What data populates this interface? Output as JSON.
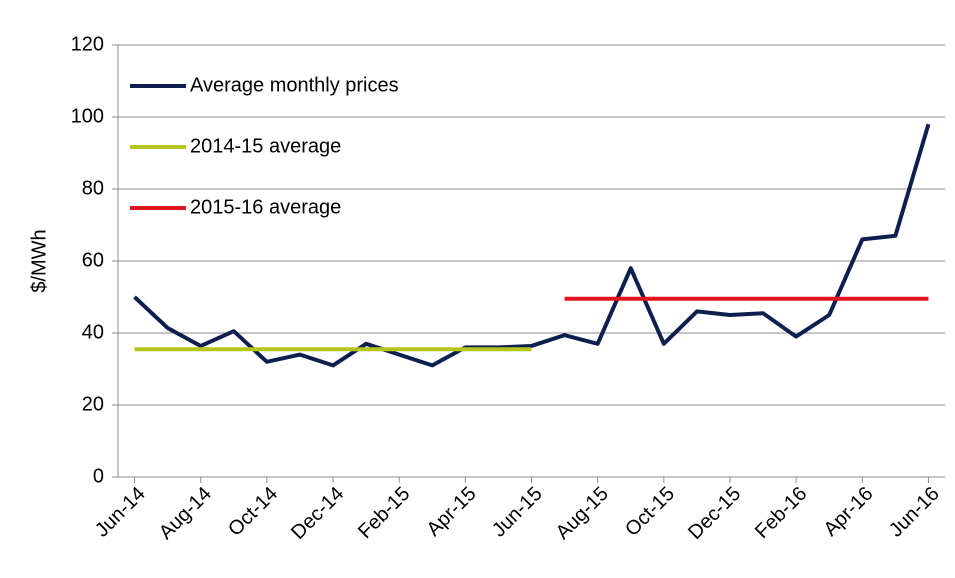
{
  "chart_data": {
    "type": "line",
    "y_label": "$/MWh",
    "categories": [
      "Jun-14",
      null,
      "Aug-14",
      null,
      "Oct-14",
      null,
      "Dec-14",
      null,
      "Feb-15",
      null,
      "Apr-15",
      null,
      "Jun-15",
      null,
      "Aug-15",
      null,
      "Oct-15",
      null,
      "Dec-15",
      null,
      "Feb-16",
      null,
      "Apr-16",
      null,
      "Jun-16"
    ],
    "series": [
      {
        "name": "Average monthly prices",
        "color": "#0d1f4f",
        "values": [
          50,
          41.4,
          36.4,
          40.5,
          32,
          34,
          31,
          37,
          34,
          31,
          36,
          36,
          36.4,
          39.4,
          37,
          58,
          37,
          46,
          45,
          45.5,
          39,
          45,
          66,
          67,
          98
        ]
      },
      {
        "name": "2014-15 average",
        "color": "#b5c61a",
        "values": [
          35.5,
          35.5,
          35.5,
          35.5,
          35.5,
          35.5,
          35.5,
          35.5,
          35.5,
          35.5,
          35.5,
          35.5,
          35.5,
          null,
          null,
          null,
          null,
          null,
          null,
          null,
          null,
          null,
          null,
          null,
          null
        ]
      },
      {
        "name": "2015-16 average",
        "color": "#e0141e",
        "values": [
          null,
          null,
          null,
          null,
          null,
          null,
          null,
          null,
          null,
          null,
          null,
          null,
          null,
          49.5,
          49.5,
          49.5,
          49.5,
          49.5,
          49.5,
          49.5,
          49.5,
          49.5,
          49.5,
          49.5,
          49.5
        ]
      }
    ],
    "ylim": [
      0,
      120
    ],
    "yticks": [
      0,
      20,
      40,
      60,
      80,
      100,
      120
    ],
    "grid": true,
    "legend": "upper left"
  }
}
